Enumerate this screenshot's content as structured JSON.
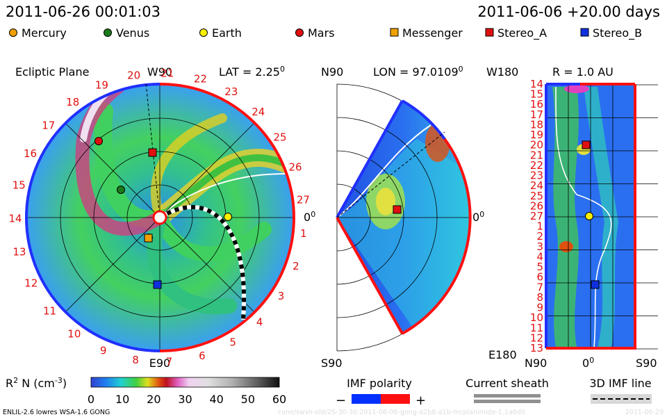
{
  "header": {
    "timestamp": "2011-06-26 00:01:03",
    "run_info": "2011-06-06 +20.00 days"
  },
  "legend_bodies": [
    {
      "label": "Mercury",
      "color": "#f0a000",
      "shape": "circle"
    },
    {
      "label": "Venus",
      "color": "#1a7a1a",
      "shape": "circle"
    },
    {
      "label": "Earth",
      "color": "#f8f000",
      "shape": "circle"
    },
    {
      "label": "Mars",
      "color": "#e01010",
      "shape": "circle"
    },
    {
      "label": "Messenger",
      "color": "#f0a000",
      "shape": "square"
    },
    {
      "label": "Stereo_A",
      "color": "#e01010",
      "shape": "square"
    },
    {
      "label": "Stereo_B",
      "color": "#1030e0",
      "shape": "square"
    }
  ],
  "panel_ecliptic": {
    "title": "Ecliptic Plane",
    "top_label": "W90",
    "lat_label": "LAT = 2.25",
    "lat_sup": "0",
    "right_label": "0",
    "right_sup": "0",
    "bottom_label": "E90",
    "carrington_labels": [
      "1",
      "2",
      "3",
      "4",
      "5",
      "6",
      "7",
      "8",
      "9",
      "10",
      "11",
      "12",
      "13",
      "14",
      "15",
      "16",
      "17",
      "18",
      "19",
      "20",
      "21",
      "22",
      "23",
      "24",
      "25",
      "26",
      "27"
    ]
  },
  "panel_meridional": {
    "top_label": "N90",
    "lon_label": "LON = 97.0109",
    "lon_sup": "0",
    "right_label": "0",
    "right_sup": "0",
    "bottom_label": "S90"
  },
  "panel_radial": {
    "top_left_label": "W180",
    "r_label": "R = 1.0 AU",
    "bottom_left_label": "E180",
    "xlabel_left": "N90",
    "xlabel_mid": "0",
    "xlabel_mid_sup": "0",
    "xlabel_right": "S90",
    "rows": [
      "14",
      "15",
      "16",
      "17",
      "18",
      "19",
      "20",
      "21",
      "22",
      "23",
      "24",
      "25",
      "26",
      "27",
      "1",
      "2",
      "3",
      "4",
      "5",
      "6",
      "7",
      "8",
      "9",
      "10",
      "11",
      "12",
      "13"
    ]
  },
  "colorbar": {
    "label": "R",
    "label_sup": "2",
    "label_rest": " N (cm",
    "label_exp": "-3",
    "label_close": ")",
    "ticks": [
      "0",
      "10",
      "20",
      "30",
      "40",
      "50",
      "60"
    ]
  },
  "imf_polarity": {
    "title": "IMF polarity",
    "minus": "−",
    "plus": "+",
    "neg_color": "#0030ff",
    "pos_color": "#ff1010"
  },
  "current_sheath": {
    "title": "Current sheath"
  },
  "imf_line": {
    "title": "3D IMF line"
  },
  "footer": {
    "model_info": "ENLIL-2.6 lowres WSA-1.6 GONG",
    "watermark": "cone/swsh-old/2S-30-30:2011-06-06-gong-a2b8-a1b-mcplanimide-1.1a6d0",
    "date_right": "2011-06-29"
  },
  "chart_data": {
    "type": "heatmap",
    "quantity": "R^2 N (cm^-3)",
    "colorbar_range": [
      0,
      60
    ],
    "views": [
      "Ecliptic Plane",
      "Meridional plane (LON = 97.0109)",
      "R = 1.0 AU"
    ],
    "bodies_shown": [
      "Mercury",
      "Venus",
      "Earth",
      "Mars",
      "Messenger",
      "Stereo_A",
      "Stereo_B"
    ]
  }
}
